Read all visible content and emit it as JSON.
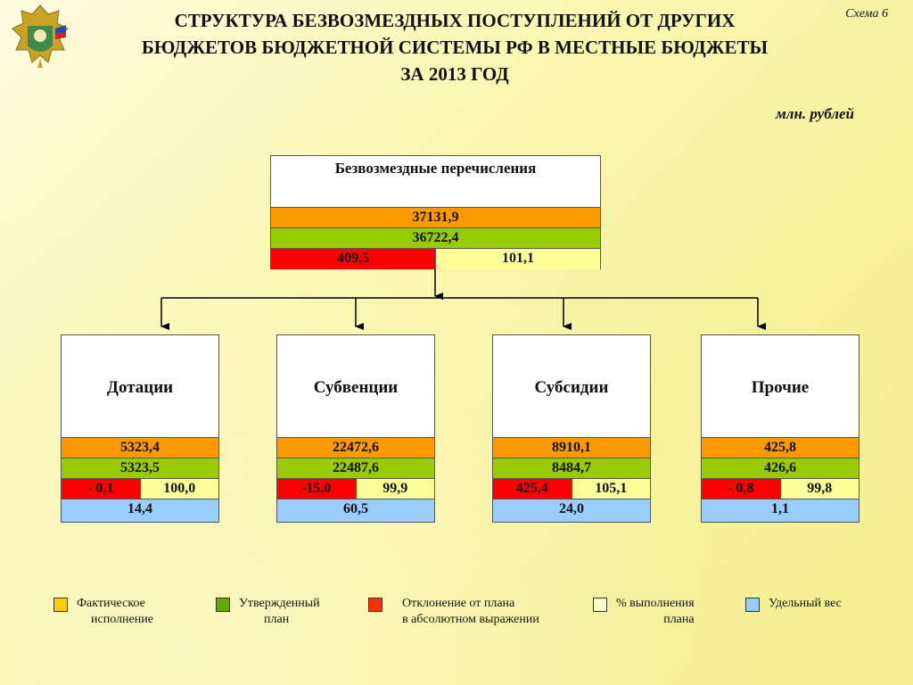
{
  "header": {
    "title_lines": [
      "СТРУКТУРА БЕЗВОЗМЕЗДНЫХ ПОСТУПЛЕНИЙ ОТ ДРУГИХ",
      "БЮДЖЕТОВ БЮДЖЕТНОЙ СИСТЕМЫ РФ В  МЕСТНЫЕ БЮДЖЕТЫ",
      "ЗА 2013 ГОД"
    ],
    "scheme_label": "Схема 6",
    "units": "млн. рублей"
  },
  "colors": {
    "actual": "#ff9900",
    "plan": "#99cc00",
    "deviation": "#ff0000",
    "percent": "#ffff99",
    "share": "#99ccff"
  },
  "root": {
    "label": "Безвозмездные перечисления",
    "actual": "37131,9",
    "plan": "36722,4",
    "deviation": "409,5",
    "percent": "101,1"
  },
  "children": [
    {
      "label": "Дотации",
      "actual": "5323,4",
      "plan": "5323,5",
      "deviation": "- 0,1",
      "percent": "100,0",
      "share": "14,4"
    },
    {
      "label": "Субвенции",
      "actual": "22472,6",
      "plan": "22487,6",
      "deviation": "-15,0",
      "percent": "99,9",
      "share": "60,5"
    },
    {
      "label": "Субсидии",
      "actual": "8910,1",
      "plan": "8484,7",
      "deviation": "425,4",
      "percent": "105,1",
      "share": "24,0"
    },
    {
      "label": "Прочие",
      "actual": "425,8",
      "plan": "426,6",
      "deviation": "- 0,8",
      "percent": "99,8",
      "share": "1,1"
    }
  ],
  "legend": [
    {
      "line1": "Фактическое",
      "line2": "исполнение"
    },
    {
      "line1": "Утвержденный",
      "line2": "план"
    },
    {
      "line1": "Отклонение от  плана",
      "line2": "в абсолютном выражении"
    },
    {
      "line1": "%  выполнения",
      "line2": "плана"
    },
    {
      "line1": "Удельный вес",
      "line2": ""
    }
  ]
}
